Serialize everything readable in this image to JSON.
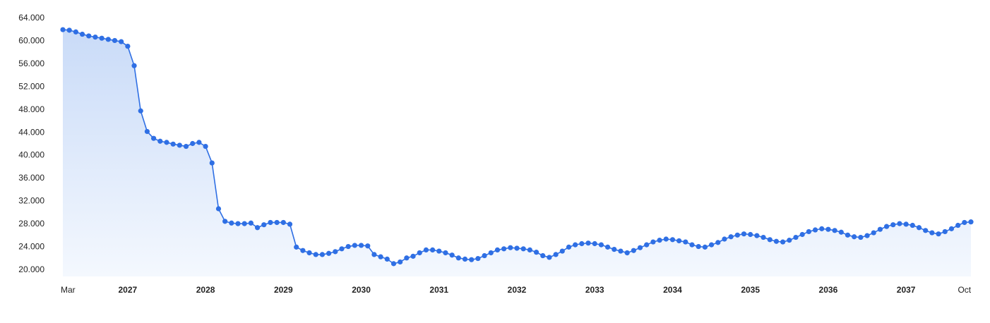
{
  "chart_data": {
    "type": "area",
    "title": "",
    "xlabel": "",
    "ylabel": "",
    "ylim": [
      20000,
      64000
    ],
    "y_ticks": [
      "20.000",
      "24.000",
      "28.000",
      "32.000",
      "36.000",
      "40.000",
      "44.000",
      "48.000",
      "52.000",
      "56.000",
      "60.000",
      "64.000"
    ],
    "y_tick_values": [
      20000,
      24000,
      28000,
      32000,
      36000,
      40000,
      44000,
      48000,
      52000,
      56000,
      60000,
      64000
    ],
    "x_ticks": [
      {
        "label": "Mar",
        "month_index": 0,
        "bold": false
      },
      {
        "label": "2027",
        "month_index": 10,
        "bold": true
      },
      {
        "label": "2028",
        "month_index": 22,
        "bold": true
      },
      {
        "label": "2029",
        "month_index": 34,
        "bold": true
      },
      {
        "label": "2030",
        "month_index": 46,
        "bold": true
      },
      {
        "label": "2031",
        "month_index": 58,
        "bold": true
      },
      {
        "label": "2032",
        "month_index": 70,
        "bold": true
      },
      {
        "label": "2033",
        "month_index": 82,
        "bold": true
      },
      {
        "label": "2034",
        "month_index": 94,
        "bold": true
      },
      {
        "label": "2035",
        "month_index": 106,
        "bold": true
      },
      {
        "label": "2036",
        "month_index": 118,
        "bold": true
      },
      {
        "label": "2037",
        "month_index": 130,
        "bold": true
      },
      {
        "label": "Oct",
        "month_index": 139,
        "bold": false
      }
    ],
    "grid": false,
    "legend": "none",
    "colors": {
      "line": "#2f6fe4",
      "marker": "#2f6fe4",
      "fill_top": "#c9dbf8",
      "fill_bottom": "#f4f8fe"
    },
    "values": [
      61900,
      61800,
      61500,
      61100,
      60800,
      60600,
      60400,
      60200,
      60000,
      59800,
      59000,
      55600,
      47700,
      44100,
      42900,
      42400,
      42200,
      41900,
      41700,
      41500,
      42000,
      42200,
      41500,
      38600,
      30600,
      28400,
      28100,
      28000,
      28000,
      28100,
      27300,
      27800,
      28200,
      28200,
      28200,
      27900,
      23900,
      23300,
      22900,
      22600,
      22600,
      22800,
      23100,
      23600,
      24000,
      24200,
      24200,
      24100,
      22600,
      22200,
      21800,
      21000,
      21300,
      22000,
      22300,
      22900,
      23400,
      23400,
      23200,
      22900,
      22500,
      22000,
      21800,
      21700,
      21900,
      22400,
      22900,
      23400,
      23600,
      23800,
      23700,
      23600,
      23400,
      23000,
      22400,
      22100,
      22600,
      23200,
      23900,
      24300,
      24500,
      24600,
      24500,
      24300,
      23900,
      23500,
      23200,
      22900,
      23300,
      23800,
      24300,
      24800,
      25100,
      25300,
      25200,
      25000,
      24800,
      24300,
      24000,
      23900,
      24300,
      24700,
      25300,
      25700,
      26000,
      26200,
      26100,
      25900,
      25600,
      25200,
      24900,
      24800,
      25100,
      25600,
      26100,
      26600,
      26900,
      27100,
      27000,
      26800,
      26500,
      26000,
      25700,
      25600,
      25900,
      26400,
      27000,
      27500,
      27800,
      28000,
      27900,
      27700,
      27300,
      26800,
      26400,
      26200,
      26600,
      27100,
      27700,
      28200,
      28300
    ]
  }
}
